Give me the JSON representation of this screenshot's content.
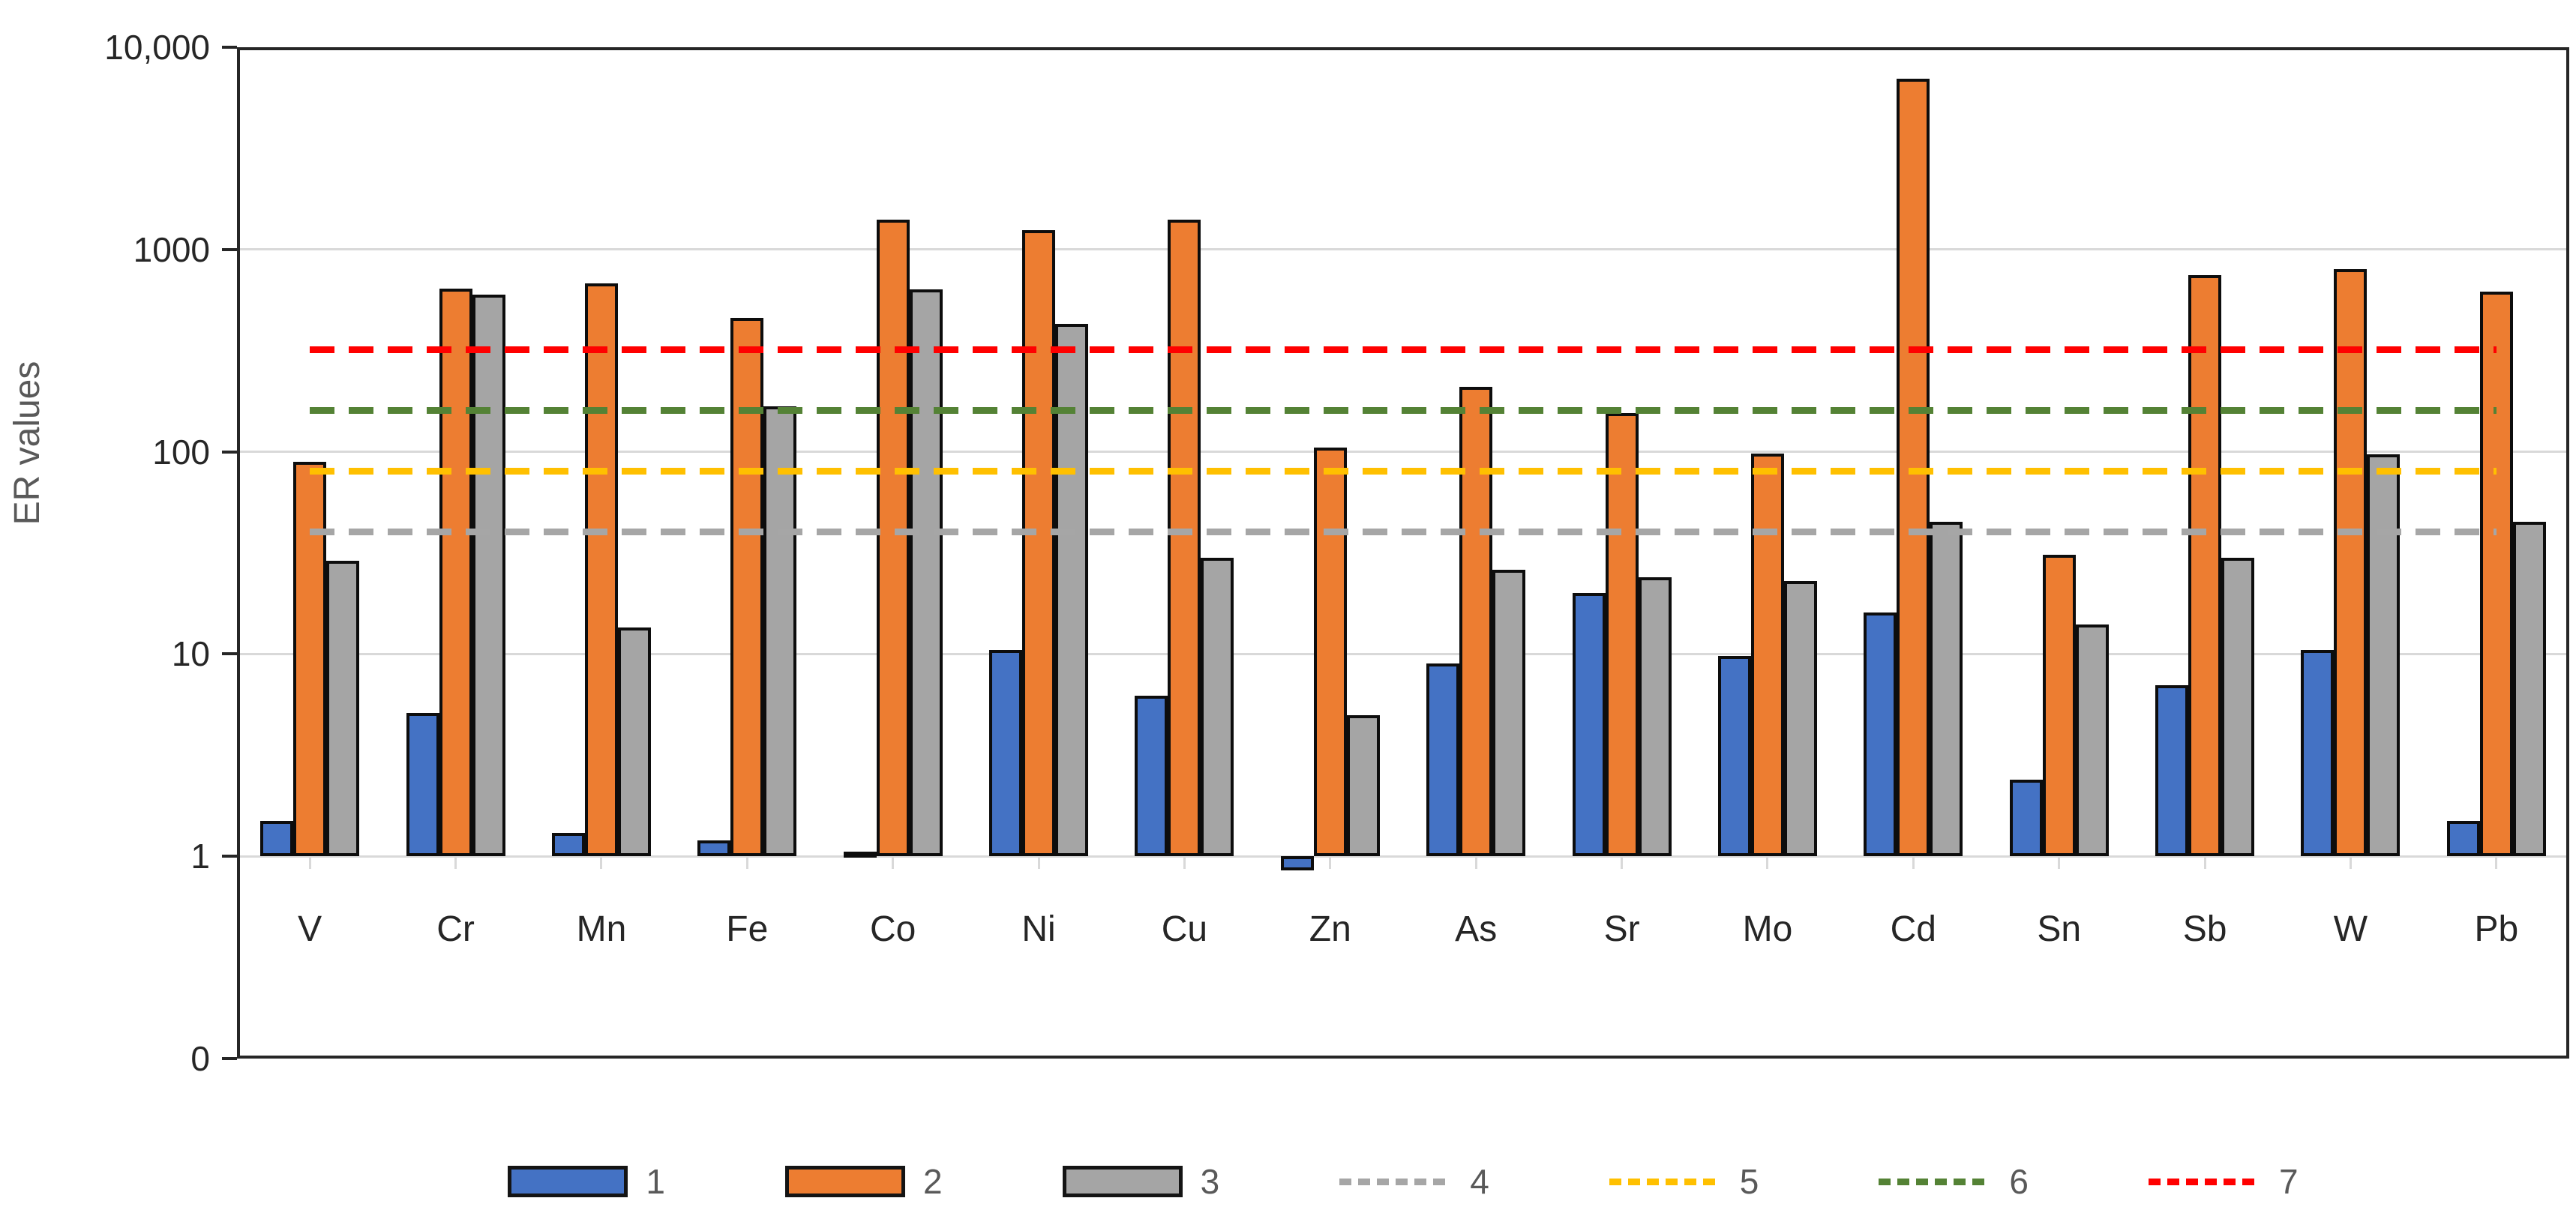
{
  "chart_data": {
    "type": "bar",
    "title": "",
    "xlabel": "",
    "ylabel": "ER values",
    "y_axis": {
      "scale": "log",
      "tick_labels": [
        "10,000",
        "1000",
        "100",
        "10",
        "1",
        "0"
      ],
      "tick_values": [
        10000,
        1000,
        100,
        10,
        1,
        0.1
      ],
      "ylim": [
        0.1,
        10000
      ],
      "baseline": 1,
      "grid": true
    },
    "categories": [
      "V",
      "Cr",
      "Mn",
      "Fe",
      "Co",
      "Ni",
      "Cu",
      "Zn",
      "As",
      "Sr",
      "Mo",
      "Cd",
      "Sn",
      "Sb",
      "W",
      "Pb"
    ],
    "series": [
      {
        "name": "1",
        "type": "bar",
        "color": "#4472c4",
        "values": [
          1.5,
          5.1,
          1.3,
          1.2,
          1.05,
          10.5,
          6.2,
          0.85,
          9,
          20,
          9.8,
          16,
          2.4,
          7,
          10.5,
          1.5
        ]
      },
      {
        "name": "2",
        "type": "bar",
        "color": "#ed7d31",
        "values": [
          89,
          640,
          680,
          460,
          1400,
          1250,
          1400,
          105,
          210,
          155,
          98,
          7000,
          31,
          750,
          800,
          620
        ]
      },
      {
        "name": "3",
        "type": "bar",
        "color": "#a5a5a5",
        "values": [
          29,
          600,
          13.5,
          168,
          635,
          430,
          30,
          5,
          26,
          24,
          23,
          45,
          14,
          30,
          97,
          45
        ]
      },
      {
        "name": "4",
        "type": "dashed-line",
        "color": "#a6a6a6",
        "value": 40
      },
      {
        "name": "5",
        "type": "dashed-line",
        "color": "#ffc000",
        "value": 80
      },
      {
        "name": "6",
        "type": "dashed-line",
        "color": "#548235",
        "value": 160
      },
      {
        "name": "7",
        "type": "dashed-line",
        "color": "#ff0000",
        "value": 320
      }
    ],
    "legend": {
      "position": "bottom",
      "entries": [
        "1",
        "2",
        "3",
        "4",
        "5",
        "6",
        "7"
      ]
    },
    "colors": {
      "bar_outline": "#0d0d0d",
      "gridline": "#d9d9d9",
      "plot_border": "#262626",
      "tick_label_text": "#262626",
      "category_label_text": "#262626",
      "axis_title_text": "#595959",
      "legend_text": "#595959"
    }
  }
}
